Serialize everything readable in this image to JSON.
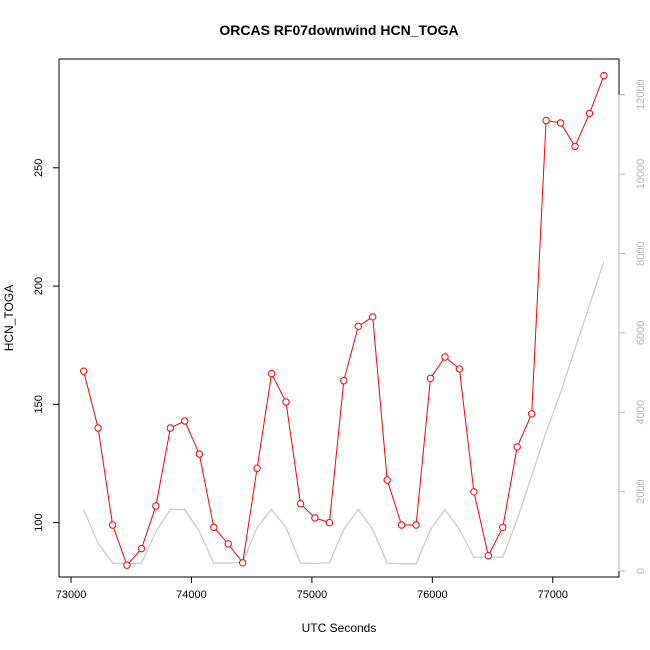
{
  "chart_data": {
    "type": "line",
    "title": "ORCAS RF07downwind HCN_TOGA",
    "xlabel": "UTC Seconds",
    "ylabel": "HCN_TOGA",
    "xlim": [
      72900,
      77550
    ],
    "ylim": [
      77,
      296
    ],
    "y2lim": [
      -150,
      12900
    ],
    "x_ticks": [
      73000,
      74000,
      75000,
      76000,
      77000
    ],
    "y_ticks": [
      100,
      150,
      200,
      250
    ],
    "y2_ticks": [
      0,
      2000,
      4000,
      6000,
      8000,
      10000,
      12000
    ],
    "grid": false,
    "series": [
      {
        "color": "#ff0000",
        "marker": "open-circle",
        "x": [
          73105,
          73225,
          73345,
          73465,
          73585,
          73705,
          73825,
          73945,
          74065,
          74185,
          74305,
          74425,
          74545,
          74665,
          74785,
          74905,
          75025,
          75145,
          75265,
          75385,
          75505,
          75625,
          75745,
          75865,
          75985,
          76105,
          76225,
          76345,
          76465,
          76585,
          76705,
          76825,
          76945,
          77065,
          77185,
          77305,
          77425
        ],
        "values": [
          164,
          140,
          99,
          82,
          89,
          107,
          140,
          143,
          129,
          98,
          91,
          83,
          123,
          163,
          151,
          108,
          102,
          100,
          160,
          183,
          187,
          118,
          99,
          99,
          161,
          170,
          165,
          113,
          86,
          98,
          132,
          146,
          270,
          269,
          259,
          273,
          289
        ]
      },
      {
        "color": "#c8c8c8",
        "marker": "none",
        "axis": "right",
        "x": [
          73105,
          73225,
          73345,
          73465,
          73585,
          73705,
          73825,
          73945,
          74065,
          74185,
          74305,
          74425,
          74545,
          74665,
          74785,
          74905,
          75025,
          75145,
          75265,
          75385,
          75505,
          75625,
          75745,
          75865,
          75985,
          76105,
          76225,
          76345,
          76465,
          76585,
          76705,
          76825,
          76945,
          77065,
          77185,
          77305,
          77425
        ],
        "values": [
          1550,
          700,
          200,
          190,
          200,
          1000,
          1550,
          1550,
          1000,
          200,
          200,
          220,
          1100,
          1550,
          1100,
          200,
          190,
          210,
          1050,
          1550,
          1050,
          200,
          180,
          180,
          1050,
          1550,
          1050,
          350,
          350,
          350,
          1300,
          2400,
          3500,
          4500,
          5600,
          6700,
          7800
        ]
      }
    ]
  }
}
